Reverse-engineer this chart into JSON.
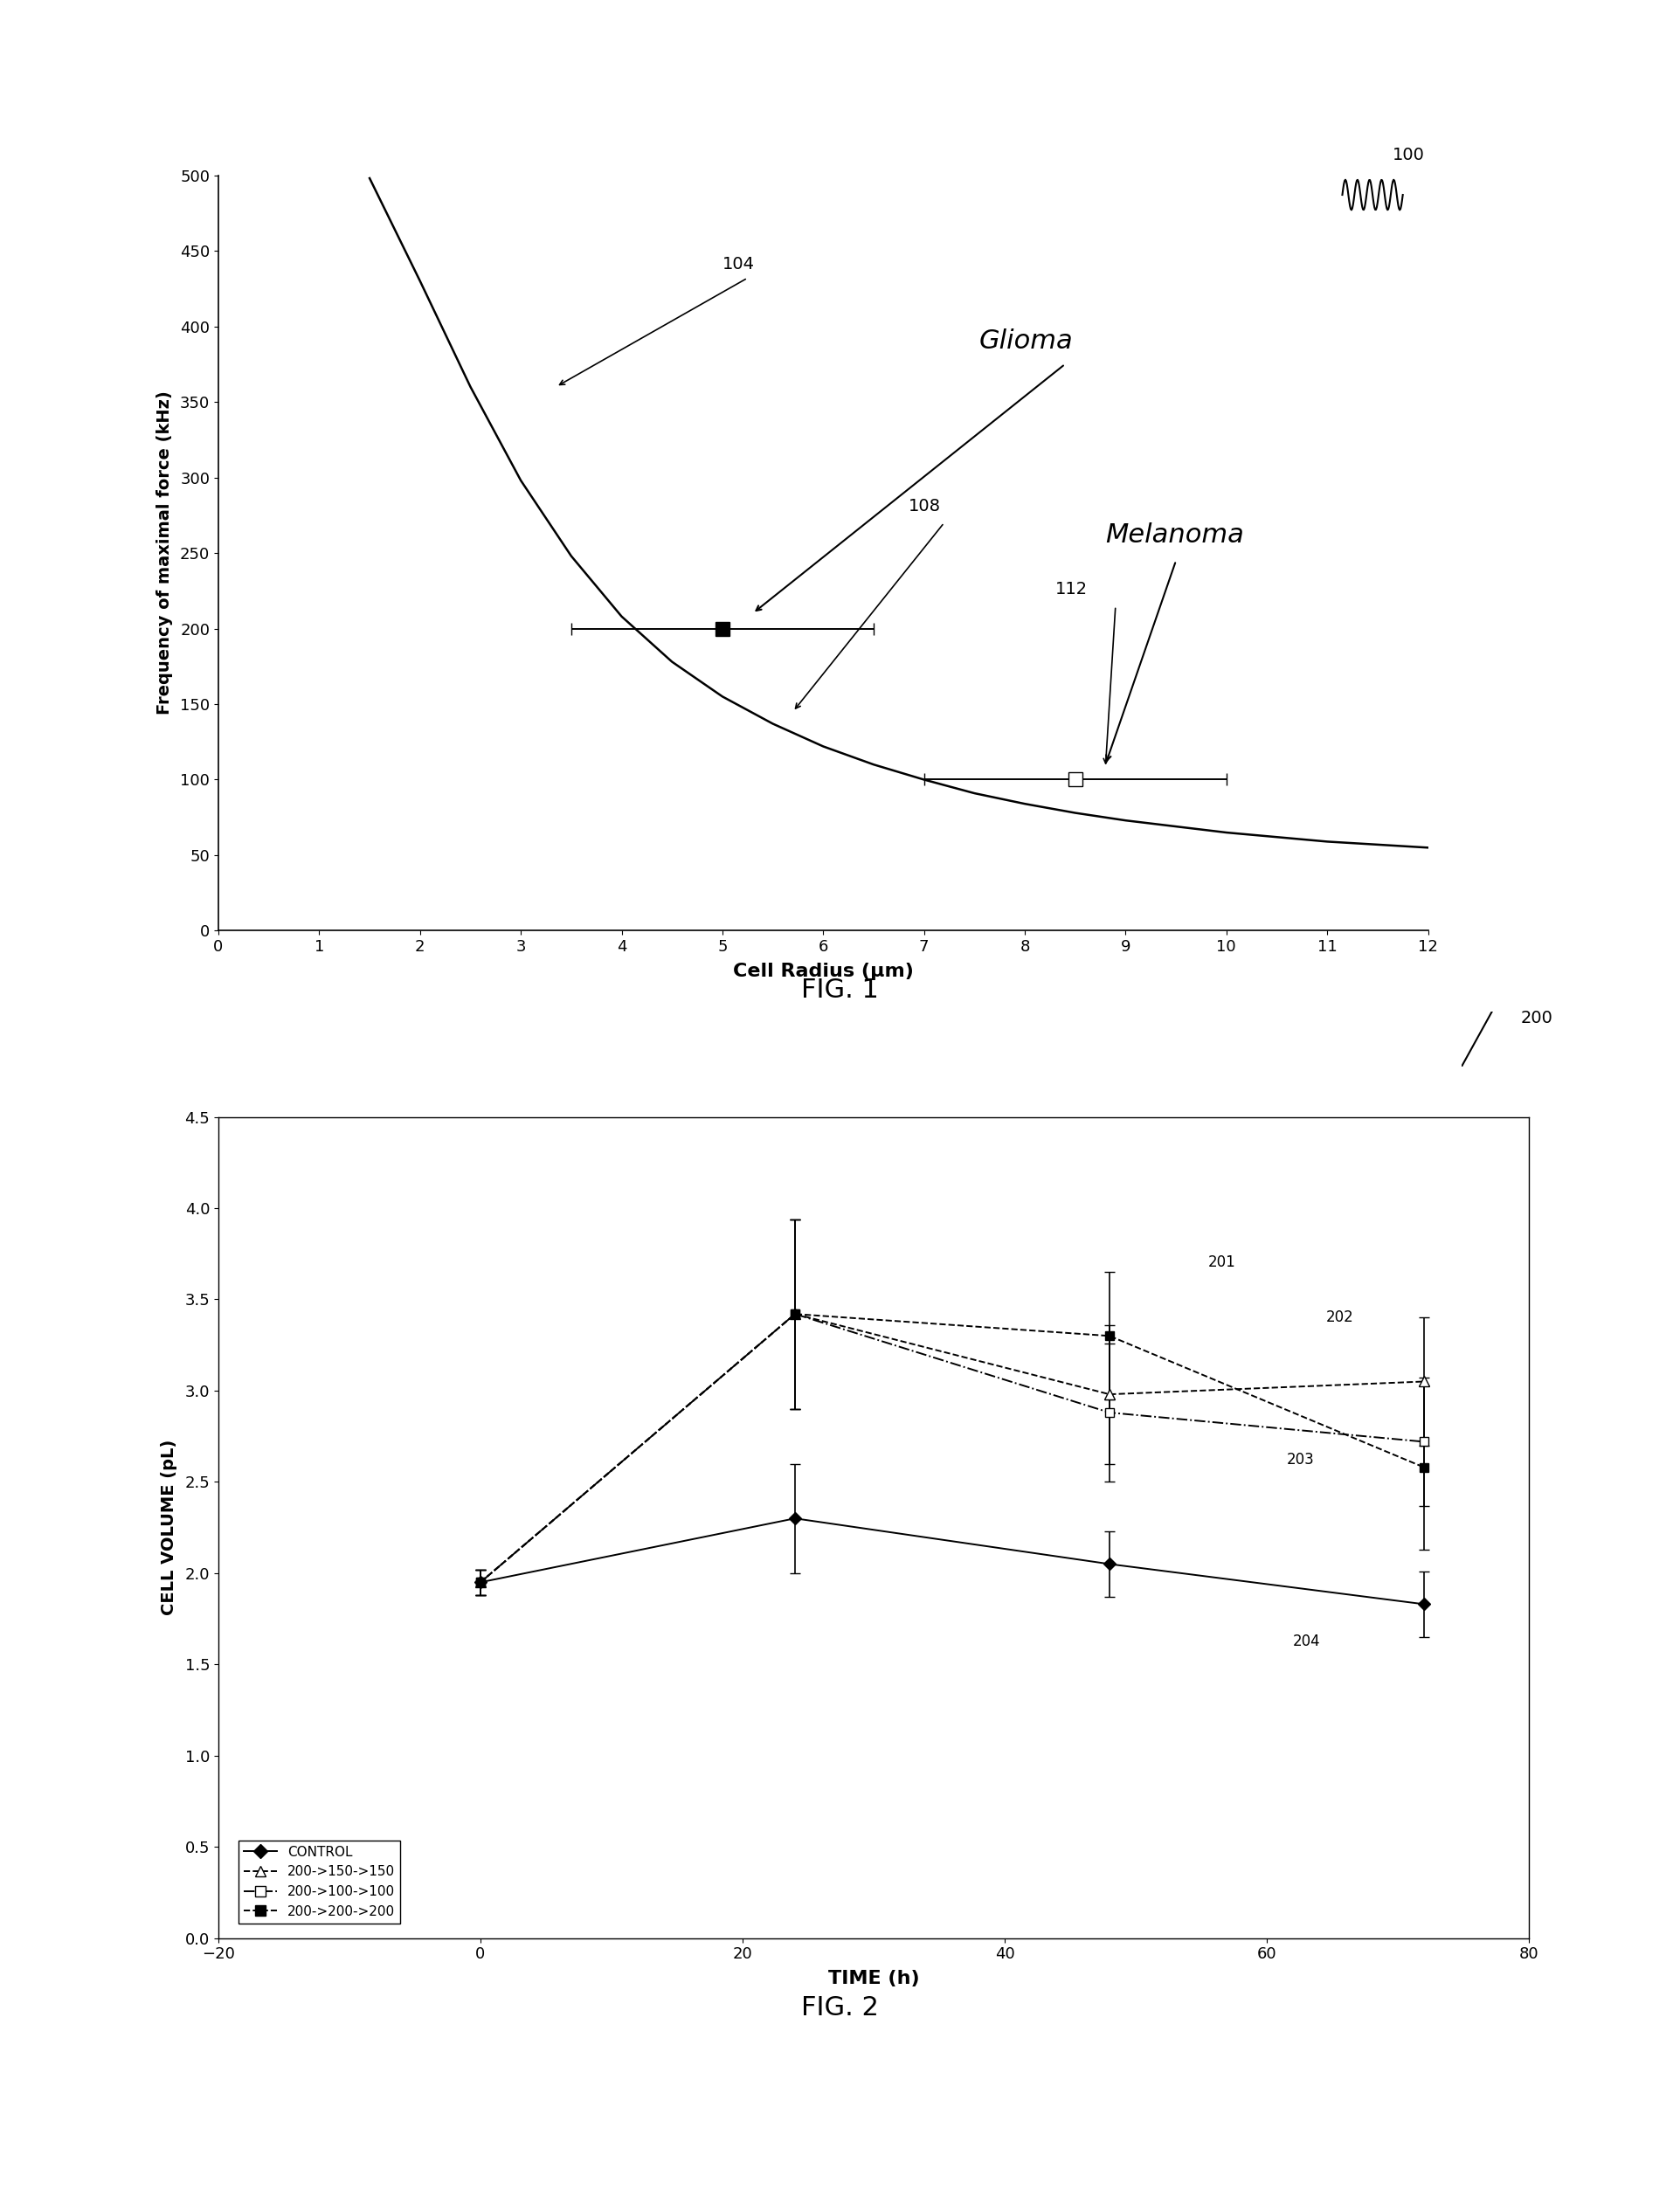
{
  "fig1": {
    "xlabel": "Cell Radius (μm)",
    "ylabel": "Frequency of maximal force (kHz)",
    "xlim": [
      0,
      12
    ],
    "ylim": [
      0,
      500
    ],
    "xticks": [
      0,
      1,
      2,
      3,
      4,
      5,
      6,
      7,
      8,
      9,
      10,
      11,
      12
    ],
    "yticks": [
      0,
      50,
      100,
      150,
      200,
      250,
      300,
      350,
      400,
      450,
      500
    ],
    "curve_x": [
      1.5,
      2.0,
      2.5,
      3.0,
      3.5,
      4.0,
      4.5,
      5.0,
      5.5,
      6.0,
      6.5,
      7.0,
      7.5,
      8.0,
      8.5,
      9.0,
      9.5,
      10.0,
      10.5,
      11.0,
      11.5,
      12.0
    ],
    "curve_y": [
      498,
      430,
      360,
      298,
      248,
      208,
      178,
      155,
      137,
      122,
      110,
      100,
      91,
      84,
      78,
      73,
      69,
      65,
      62,
      59,
      57,
      55
    ],
    "glioma_x": 5.0,
    "glioma_y": 200,
    "glioma_xerr": 1.5,
    "melanoma_x": 8.5,
    "melanoma_y": 100,
    "melanoma_xerr": 1.5,
    "label_glioma": "Glioma",
    "label_melanoma": "Melanoma",
    "label_100": "100",
    "label_104": "104",
    "label_108": "108",
    "label_112": "112"
  },
  "fig2": {
    "xlabel": "TIME (h)",
    "ylabel": "CELL VOLUME (pL)",
    "xlim": [
      -20,
      80
    ],
    "ylim": [
      0,
      4.5
    ],
    "xticks": [
      -20,
      0,
      20,
      40,
      60,
      80
    ],
    "yticks": [
      0,
      0.5,
      1.0,
      1.5,
      2.0,
      2.5,
      3.0,
      3.5,
      4.0,
      4.5
    ],
    "series": [
      {
        "label": "CONTROL",
        "x": [
          0,
          24,
          48,
          72
        ],
        "y": [
          1.95,
          2.3,
          2.05,
          1.83
        ],
        "yerr": [
          0.07,
          0.3,
          0.18,
          0.18
        ],
        "marker": "D",
        "markersize": 7,
        "linestyle": "-",
        "filled": true
      },
      {
        "label": "200->150->150",
        "x": [
          0,
          24,
          48,
          72
        ],
        "y": [
          1.95,
          3.42,
          2.98,
          3.05
        ],
        "yerr": [
          0.07,
          0.52,
          0.38,
          0.35
        ],
        "marker": "^",
        "markersize": 8,
        "linestyle": "--",
        "filled": false
      },
      {
        "label": "200->100->100",
        "x": [
          0,
          24,
          48,
          72
        ],
        "y": [
          1.95,
          3.42,
          2.88,
          2.72
        ],
        "yerr": [
          0.07,
          0.52,
          0.38,
          0.35
        ],
        "marker": "s",
        "markersize": 7,
        "linestyle": "-.",
        "filled": false
      },
      {
        "label": "200->200->200",
        "x": [
          0,
          24,
          48,
          72
        ],
        "y": [
          1.95,
          3.42,
          3.3,
          2.58
        ],
        "yerr": [
          0.07,
          0.52,
          0.35,
          0.45
        ],
        "marker": "s",
        "markersize": 7,
        "linestyle": "--",
        "filled": true
      }
    ]
  }
}
